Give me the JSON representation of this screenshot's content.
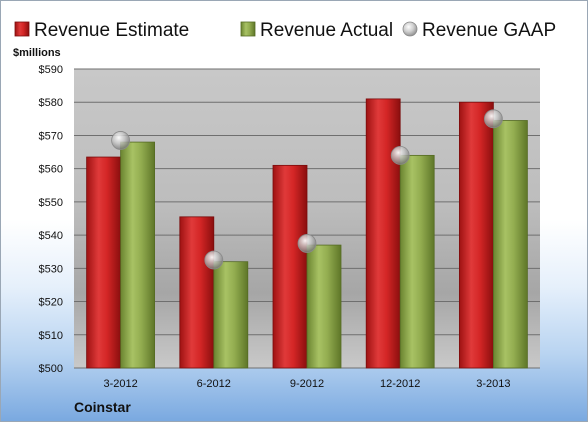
{
  "chart_data": {
    "type": "bar",
    "unit_label": "$millions",
    "company": "Coinstar",
    "categories": [
      "3-2012",
      "6-2012",
      "9-2012",
      "12-2012",
      "3-2013"
    ],
    "y_ticks": [
      "$500",
      "$510",
      "$520",
      "$530",
      "$540",
      "$550",
      "$560",
      "$570",
      "$580",
      "$590"
    ],
    "ylim": [
      500,
      590
    ],
    "grid": true,
    "legend_position": "top",
    "series": [
      {
        "name": "Revenue Estimate",
        "kind": "bar",
        "color": "#d42a2a",
        "values": [
          563.5,
          545.5,
          561,
          581,
          580
        ]
      },
      {
        "name": "Revenue Actual",
        "kind": "bar",
        "color": "#8faa4a",
        "values": [
          568,
          532,
          537,
          564,
          574.5
        ]
      },
      {
        "name": "Revenue GAAP",
        "kind": "marker",
        "color": "#b8b8b8",
        "values": [
          568.5,
          532.5,
          537.5,
          564,
          575
        ]
      }
    ]
  }
}
